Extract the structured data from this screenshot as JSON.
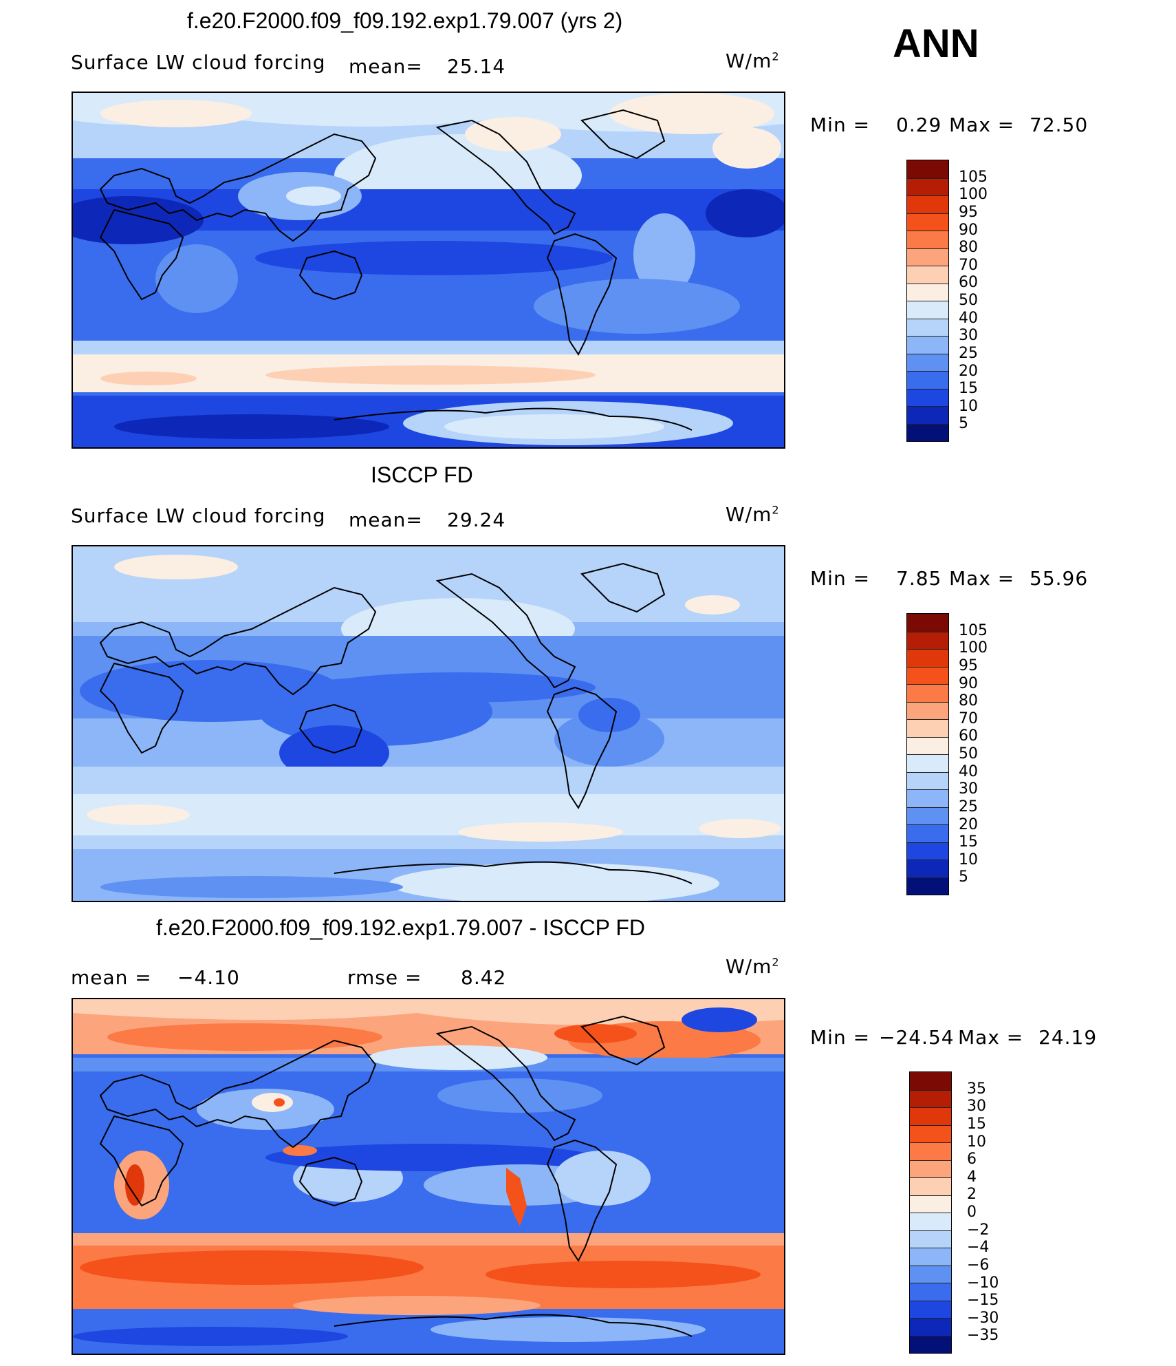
{
  "season": "ANN",
  "panels": [
    {
      "title": "f.e20.F2000.f09_f09.192.exp1.79.007 (yrs 2)",
      "left_label": "Surface LW cloud forcing",
      "mean_label": "mean=",
      "mean_value": "25.14",
      "units_base": "W/m",
      "units_exp": "2",
      "minmax": {
        "min_label": "Min =",
        "min_value": "0.29",
        "max_label": "Max =",
        "max_value": "72.50"
      },
      "legend": {
        "labels": [
          "105",
          "100",
          "95",
          "90",
          "80",
          "70",
          "60",
          "50",
          "40",
          "30",
          "25",
          "20",
          "15",
          "10",
          "5"
        ],
        "colors": [
          "#7a0a03",
          "#b51d05",
          "#e0370b",
          "#f5521b",
          "#fb7a45",
          "#fca57d",
          "#fdd0b4",
          "#fbeee3",
          "#d9ebfb",
          "#b6d3f9",
          "#8cb6f7",
          "#5e91f2",
          "#3a6cee",
          "#1d47e0",
          "#0d28b8",
          "#031078"
        ]
      }
    },
    {
      "title": "ISCCP FD",
      "left_label": "Surface LW cloud forcing",
      "mean_label": "mean=",
      "mean_value": "29.24",
      "units_base": "W/m",
      "units_exp": "2",
      "minmax": {
        "min_label": "Min =",
        "min_value": "7.85",
        "max_label": "Max =",
        "max_value": "55.96"
      },
      "legend": {
        "labels": [
          "105",
          "100",
          "95",
          "90",
          "80",
          "70",
          "60",
          "50",
          "40",
          "30",
          "25",
          "20",
          "15",
          "10",
          "5"
        ],
        "colors": [
          "#7a0a03",
          "#b51d05",
          "#e0370b",
          "#f5521b",
          "#fb7a45",
          "#fca57d",
          "#fdd0b4",
          "#fbeee3",
          "#d9ebfb",
          "#b6d3f9",
          "#8cb6f7",
          "#5e91f2",
          "#3a6cee",
          "#1d47e0",
          "#0d28b8",
          "#031078"
        ]
      }
    },
    {
      "title": "f.e20.F2000.f09_f09.192.exp1.79.007 - ISCCP FD",
      "left_label": "mean =",
      "mean_value": "−4.10",
      "rmse_label": "rmse =",
      "rmse_value": "8.42",
      "units_base": "W/m",
      "units_exp": "2",
      "minmax": {
        "min_label": "Min =",
        "min_value": "−24.54",
        "max_label": "Max =",
        "max_value": "24.19"
      },
      "legend": {
        "labels": [
          "35",
          "30",
          "15",
          "10",
          "6",
          "4",
          "2",
          "0",
          "−2",
          "−4",
          "−6",
          "−10",
          "−15",
          "−30",
          "−35"
        ],
        "colors": [
          "#7a0a03",
          "#b51d05",
          "#e0370b",
          "#f5521b",
          "#fb7a45",
          "#fca57d",
          "#fdd0b4",
          "#fbeee3",
          "#d9ebfb",
          "#b6d3f9",
          "#8cb6f7",
          "#5e91f2",
          "#3a6cee",
          "#1d47e0",
          "#0d28b8",
          "#031078"
        ]
      }
    }
  ],
  "chart_data": [
    {
      "type": "heatmap",
      "title": "f.e20.F2000.f09_f09.192.exp1.79.007 (yrs 2)",
      "variable": "Surface LW cloud forcing",
      "units": "W/m2",
      "mean": 25.14,
      "min": 0.29,
      "max": 72.5,
      "contour_levels": [
        5,
        10,
        15,
        20,
        25,
        30,
        40,
        50,
        60,
        70,
        80,
        90,
        95,
        100,
        105
      ]
    },
    {
      "type": "heatmap",
      "title": "ISCCP FD",
      "variable": "Surface LW cloud forcing",
      "units": "W/m2",
      "mean": 29.24,
      "min": 7.85,
      "max": 55.96,
      "contour_levels": [
        5,
        10,
        15,
        20,
        25,
        30,
        40,
        50,
        60,
        70,
        80,
        90,
        95,
        100,
        105
      ]
    },
    {
      "type": "heatmap",
      "title": "f.e20.F2000.f09_f09.192.exp1.79.007 - ISCCP FD",
      "units": "W/m2",
      "mean": -4.1,
      "rmse": 8.42,
      "min": -24.54,
      "max": 24.19,
      "contour_levels": [
        -35,
        -30,
        -15,
        -10,
        -6,
        -4,
        -2,
        0,
        2,
        4,
        6,
        10,
        15,
        30,
        35
      ]
    }
  ]
}
